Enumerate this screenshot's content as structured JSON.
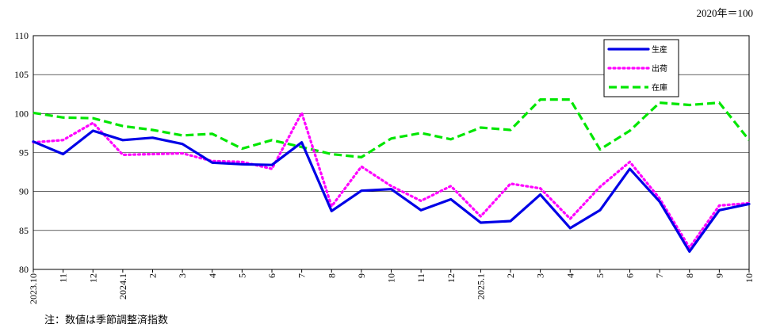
{
  "unit_label": "2020年＝100",
  "note": "注：数値は季節調整済指数",
  "chart_data": {
    "type": "line",
    "title": "",
    "xlabel": "",
    "ylabel": "",
    "ylim": [
      80,
      110
    ],
    "yticks": [
      80,
      85,
      90,
      95,
      100,
      105,
      110
    ],
    "grid": true,
    "legend_position": "top-right",
    "categories": [
      "2023.10",
      "11",
      "12",
      "2024.1",
      "2",
      "3",
      "4",
      "5",
      "6",
      "7",
      "8",
      "9",
      "10",
      "11",
      "12",
      "2025.1",
      "2",
      "3",
      "4",
      "5",
      "6",
      "7",
      "8",
      "9",
      "10"
    ],
    "series": [
      {
        "name": "生産",
        "color": "#0000e6",
        "style": "solid",
        "values": [
          96.4,
          94.8,
          97.8,
          96.6,
          96.9,
          96.1,
          93.7,
          93.5,
          93.4,
          96.3,
          87.5,
          90.1,
          90.3,
          87.6,
          89.0,
          86.0,
          86.2,
          89.6,
          85.3,
          87.6,
          92.9,
          88.7,
          82.3,
          87.6,
          88.4
        ]
      },
      {
        "name": "出荷",
        "color": "#ff00ff",
        "style": "dotted",
        "values": [
          96.3,
          96.6,
          98.8,
          94.7,
          94.8,
          94.9,
          93.9,
          93.8,
          92.9,
          100.1,
          88.1,
          93.2,
          90.7,
          88.8,
          90.7,
          86.8,
          91.0,
          90.4,
          86.5,
          90.6,
          93.8,
          89.1,
          82.8,
          88.2,
          88.5
        ]
      },
      {
        "name": "在庫",
        "color": "#00e600",
        "style": "dashed",
        "values": [
          100.1,
          99.5,
          99.4,
          98.4,
          97.9,
          97.2,
          97.4,
          95.5,
          96.6,
          95.7,
          94.8,
          94.4,
          96.8,
          97.5,
          96.7,
          98.2,
          97.9,
          101.8,
          101.8,
          95.4,
          97.8,
          101.4,
          101.1,
          101.4,
          96.6
        ]
      }
    ]
  }
}
